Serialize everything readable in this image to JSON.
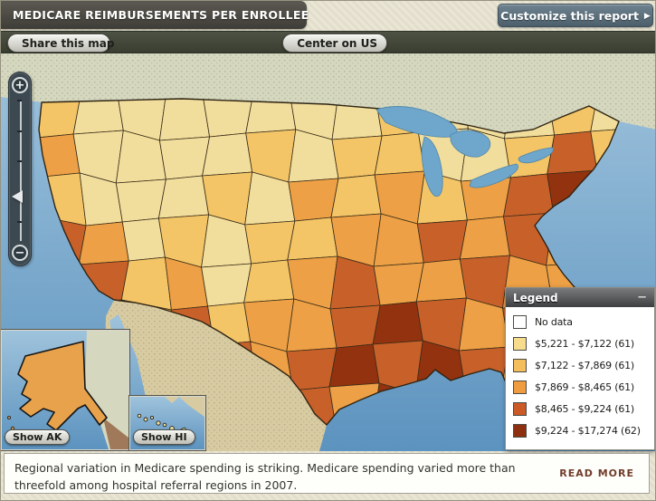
{
  "header": {
    "title": "MEDICARE REIMBURSEMENTS PER ENROLLEE",
    "customize_button": "Customize this report",
    "customize_arrow": "▶"
  },
  "toolbar": {
    "share_button": "Share this map",
    "center_button": "Center on US"
  },
  "map": {
    "zoom_in": "+",
    "zoom_out": "−",
    "show_ak_button": "Show AK",
    "show_hi_button": "Show HI",
    "ocean_top_color": "#9FC3DC",
    "ocean_bottom_color": "#5C93BF",
    "canada_color": "#D5D8BF",
    "mexico_color": "#D8CBA1",
    "alaska_fill": "#E8A24C",
    "region_border_color": "#3A2D18",
    "palette": [
      "#FFFFFF",
      "#F2DE9C",
      "#F3C567",
      "#EDA045",
      "#C8602A",
      "#92320F"
    ],
    "cells": [
      "21111111211121",
      "31111212211242",
      "21112132323453",
      "43121223343432",
      "54231234334332",
      "55342334543433",
      "34434345454343",
      "23345543543544"
    ]
  },
  "legend": {
    "title": "Legend",
    "minimize": "−",
    "items": [
      {
        "color": "#FFFFFF",
        "label": "No data"
      },
      {
        "color": "#F6DC8C",
        "label": "$5,221 - $7,122 (61)"
      },
      {
        "color": "#F5BE5C",
        "label": "$7,122 - $7,869 (61)"
      },
      {
        "color": "#EE9C3F",
        "label": "$7,869 - $8,465 (61)"
      },
      {
        "color": "#CB5A26",
        "label": "$8,465 - $9,224 (61)"
      },
      {
        "color": "#8E2F10",
        "label": "$9,224 - $17,274 (62)"
      }
    ]
  },
  "footer": {
    "text": "Regional variation in Medicare spending is striking. Medicare spending varied more than threefold among hospital referral regions in 2007.",
    "read_more": "READ MORE"
  }
}
